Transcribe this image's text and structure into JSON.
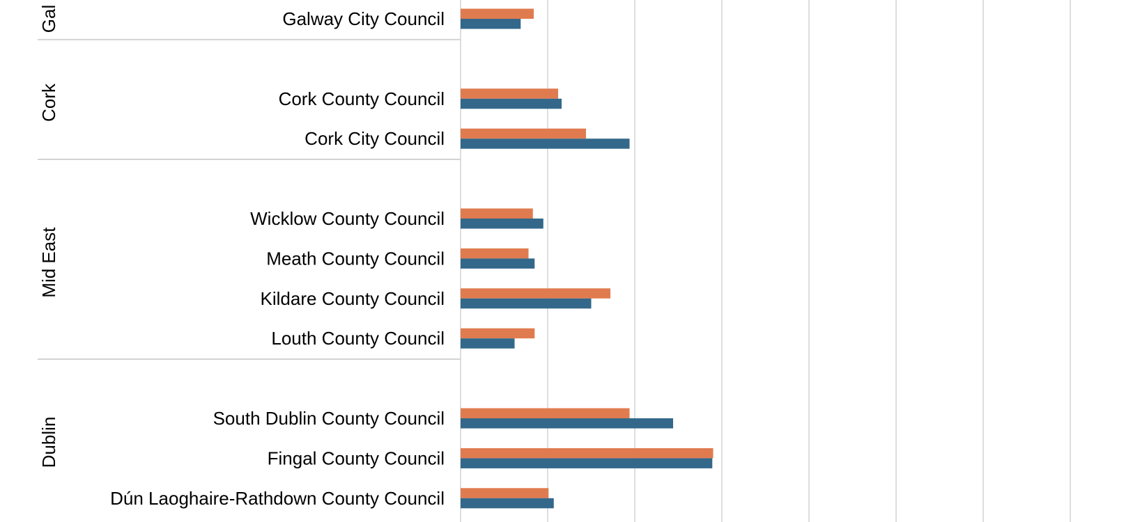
{
  "chart_data": {
    "type": "bar",
    "orientation": "horizontal",
    "title": "",
    "xlabel": "",
    "ylabel": "",
    "grid": true,
    "legend": "none",
    "xlim": [
      0,
      7.75
    ],
    "colors": {
      "series_1": "#E07B4F",
      "series_2": "#33688A",
      "gridline": "#D3D3D3",
      "separator": "#D3D3D3"
    },
    "groups": [
      {
        "name": "Gal",
        "categories": [
          {
            "label": "Galway City Council",
            "values": [
              0.84,
              0.69
            ]
          }
        ]
      },
      {
        "name": "Cork",
        "categories": [
          {
            "label": "Cork County Council",
            "values": [
              1.12,
              1.16
            ]
          },
          {
            "label": "Cork City Council",
            "values": [
              1.44,
              1.94
            ]
          }
        ]
      },
      {
        "name": "Mid East",
        "categories": [
          {
            "label": "Wicklow County Council",
            "values": [
              0.83,
              0.95
            ]
          },
          {
            "label": "Meath County Council",
            "values": [
              0.78,
              0.85
            ]
          },
          {
            "label": "Kildare County Council",
            "values": [
              1.72,
              1.5
            ]
          },
          {
            "label": "Louth County Council",
            "values": [
              0.85,
              0.62
            ]
          }
        ]
      },
      {
        "name": "Dublin",
        "categories": [
          {
            "label": "South Dublin County Council",
            "values": [
              1.94,
              2.44
            ]
          },
          {
            "label": "Fingal County Council",
            "values": [
              2.9,
              2.89
            ]
          },
          {
            "label": "Dún Laoghaire-Rathdown County Council",
            "values": [
              1.01,
              1.07
            ]
          }
        ]
      }
    ]
  }
}
